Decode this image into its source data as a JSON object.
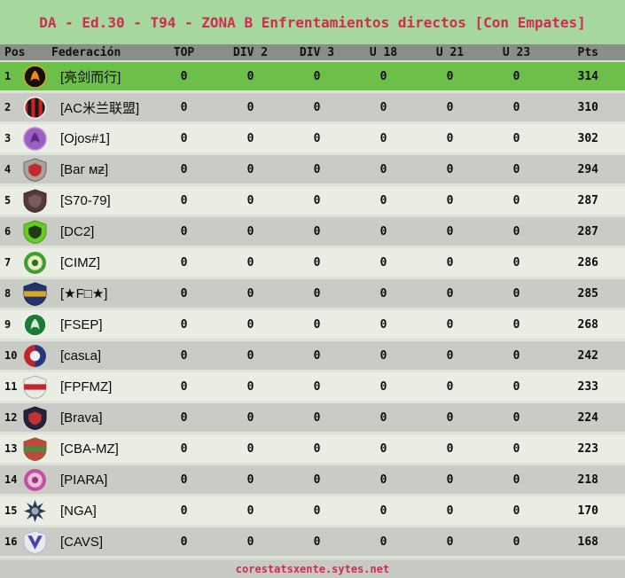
{
  "title": "DA - Ed.30 - T94 - ZONA B Enfrentamientos directos [Con Empates]",
  "footer": "corestatsxente.sytes.net",
  "colors": {
    "page_background": "#a6d79e",
    "accent_crimson": "#d22a50",
    "header_background": "#8b8e88",
    "row_highlight_green": "#6cc04a",
    "row_even_gray": "#c9ccc5",
    "row_odd_light": "#e9ede4"
  },
  "table": {
    "headers": [
      {
        "label": "Pos",
        "key": "pos"
      },
      {
        "label": "Federación",
        "key": "federacion"
      },
      {
        "label": "TOP",
        "key": "top"
      },
      {
        "label": "DIV 2",
        "key": "div-2"
      },
      {
        "label": "DIV 3",
        "key": "div-3"
      },
      {
        "label": "U 18",
        "key": "u-18"
      },
      {
        "label": "U 21",
        "key": "u-21"
      },
      {
        "label": "U 23",
        "key": "u-23"
      },
      {
        "label": "Pts",
        "key": "pts"
      }
    ],
    "rows": [
      {
        "pos": 1,
        "federation": "[亮剑而行]",
        "icon": {
          "name": "flame-badge-icon",
          "shape": "circle-glyph",
          "c1": "#14100a",
          "c2": "#f08a1a",
          "c3": "#caa92c"
        },
        "values": [
          0,
          0,
          0,
          0,
          0,
          0
        ],
        "pts": 314,
        "highlight": true
      },
      {
        "pos": 2,
        "federation": "[AC米兰联盟]",
        "icon": {
          "name": "milan-crest-icon",
          "shape": "stripes",
          "c1": "#cc2222",
          "c2": "#1a1a1a",
          "c3": "#f2f2f2"
        },
        "values": [
          0,
          0,
          0,
          0,
          0,
          0
        ],
        "pts": 310,
        "highlight": false
      },
      {
        "pos": 3,
        "federation": "[Ojos#1]",
        "icon": {
          "name": "purple-orbs-icon",
          "shape": "circle-glyph",
          "c1": "#9a5fc0",
          "c2": "#5d2d86",
          "c3": "#b88ad4"
        },
        "values": [
          0,
          0,
          0,
          0,
          0,
          0
        ],
        "pts": 302,
        "highlight": false
      },
      {
        "pos": 4,
        "federation": "[Ваг мƶ]",
        "icon": {
          "name": "bar-mz-shield-icon",
          "shape": "shield",
          "c1": "#a8a49c",
          "c2": "#c02a30",
          "c3": "#6e6a62"
        },
        "values": [
          0,
          0,
          0,
          0,
          0,
          0
        ],
        "pts": 294,
        "highlight": false
      },
      {
        "pos": 5,
        "federation": "[S70-79]",
        "icon": {
          "name": "dark-shield-icon",
          "shape": "shield",
          "c1": "#54383a",
          "c2": "#7a5a5c",
          "c3": "#3a2628"
        },
        "values": [
          0,
          0,
          0,
          0,
          0,
          0
        ],
        "pts": 287,
        "highlight": false
      },
      {
        "pos": 6,
        "federation": "[DC2]",
        "icon": {
          "name": "green-shield-icon",
          "shape": "shield",
          "c1": "#66cc22",
          "c2": "#223a18",
          "c3": "#4a9a1a"
        },
        "values": [
          0,
          0,
          0,
          0,
          0,
          0
        ],
        "pts": 287,
        "highlight": false
      },
      {
        "pos": 7,
        "federation": "[CIMZ]",
        "icon": {
          "name": "green-ring-icon",
          "shape": "ring",
          "c1": "#3f9c30",
          "c2": "#e9e9c2",
          "c3": "#2a6e20"
        },
        "values": [
          0,
          0,
          0,
          0,
          0,
          0
        ],
        "pts": 286,
        "highlight": false
      },
      {
        "pos": 8,
        "federation": "[★F□★]",
        "icon": {
          "name": "boca-crest-icon",
          "shape": "shield-band",
          "c1": "#24356e",
          "c2": "#d9a820",
          "c3": "#16224a"
        },
        "values": [
          0,
          0,
          0,
          0,
          0,
          0
        ],
        "pts": 285,
        "highlight": false
      },
      {
        "pos": 9,
        "federation": "[FSEP]",
        "icon": {
          "name": "palmeiras-crest-icon",
          "shape": "circle-glyph",
          "c1": "#1d7a33",
          "c2": "#d8ecd8",
          "c3": "#f4f8f2"
        },
        "values": [
          0,
          0,
          0,
          0,
          0,
          0
        ],
        "pts": 268,
        "highlight": false
      },
      {
        "pos": 10,
        "federation": "[casʟa]",
        "icon": {
          "name": "casla-crest-icon",
          "shape": "half",
          "c1": "#c0252c",
          "c2": "#27357a",
          "c3": "#f0f0f0"
        },
        "values": [
          0,
          0,
          0,
          0,
          0,
          0
        ],
        "pts": 242,
        "highlight": false
      },
      {
        "pos": 11,
        "federation": "[FPFMZ]",
        "icon": {
          "name": "fpf-peru-crest-icon",
          "shape": "shield-band",
          "c1": "#eceae6",
          "c2": "#c8242c",
          "c3": "#b0aca6"
        },
        "values": [
          0,
          0,
          0,
          0,
          0,
          0
        ],
        "pts": 233,
        "highlight": false
      },
      {
        "pos": 12,
        "federation": "[Brava]",
        "icon": {
          "name": "brava-shield-icon",
          "shape": "shield",
          "c1": "#23233c",
          "c2": "#c23234",
          "c3": "#14142a"
        },
        "values": [
          0,
          0,
          0,
          0,
          0,
          0
        ],
        "pts": 224,
        "highlight": false
      },
      {
        "pos": 13,
        "federation": "[CBA-MZ]",
        "icon": {
          "name": "cba-coat-of-arms-icon",
          "shape": "shield-band",
          "c1": "#c2483a",
          "c2": "#4a8a3a",
          "c3": "#8a5a30"
        },
        "values": [
          0,
          0,
          0,
          0,
          0,
          0
        ],
        "pts": 223,
        "highlight": false
      },
      {
        "pos": 14,
        "federation": "[PIARA]",
        "icon": {
          "name": "pink-disc-icon",
          "shape": "ring",
          "c1": "#c44fa0",
          "c2": "#e9bcd8",
          "c3": "#933a78"
        },
        "values": [
          0,
          0,
          0,
          0,
          0,
          0
        ],
        "pts": 218,
        "highlight": false
      },
      {
        "pos": 15,
        "federation": "[NGA]",
        "icon": {
          "name": "star-burst-icon",
          "shape": "star",
          "c1": "#2e3a50",
          "c2": "#9aa8b8",
          "c3": "#1c2636"
        },
        "values": [
          0,
          0,
          0,
          0,
          0,
          0
        ],
        "pts": 170,
        "highlight": false
      },
      {
        "pos": 16,
        "federation": "[CAVS]",
        "icon": {
          "name": "velez-v-crest-icon",
          "shape": "vee",
          "c1": "#e9e9f2",
          "c2": "#4a44a8",
          "c3": "#b8b8cc"
        },
        "values": [
          0,
          0,
          0,
          0,
          0,
          0
        ],
        "pts": 168,
        "highlight": false
      }
    ]
  }
}
